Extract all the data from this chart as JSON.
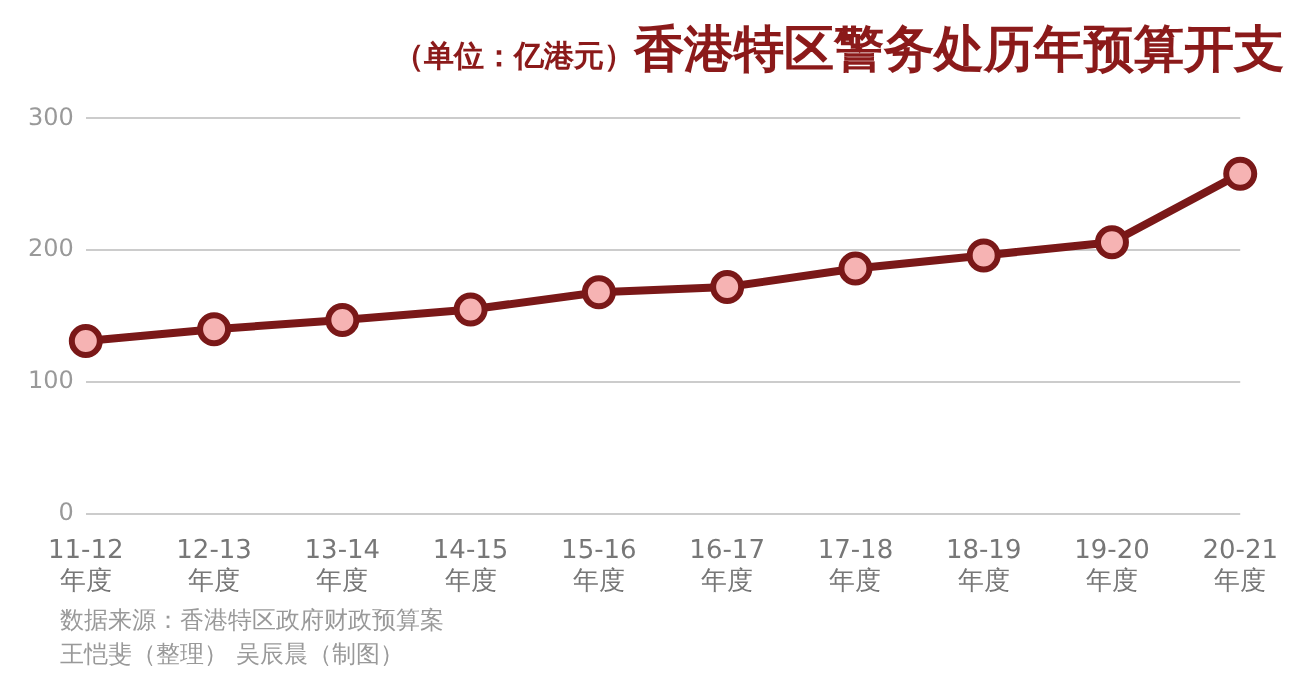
{
  "chart_data": {
    "type": "line",
    "subtitle": "（单位：亿港元）",
    "title": "香港特区警务处历年预算开支",
    "categories": [
      "11-12\n年度",
      "12-13\n年度",
      "13-14\n年度",
      "14-15\n年度",
      "15-16\n年度",
      "16-17\n年度",
      "17-18\n年度",
      "18-19\n年度",
      "19-20\n年度",
      "20-21\n年度"
    ],
    "series": [
      {
        "color": "#7a1818",
        "values": [
          131,
          140,
          147,
          155,
          168,
          172,
          186,
          196,
          206,
          258
        ]
      }
    ],
    "ylim": [
      0,
      300
    ],
    "yticks": [
      0,
      100,
      200,
      300
    ],
    "grid": "y",
    "legend": false,
    "marker": "circle",
    "line_style": "solid",
    "annotations": [
      "数据来源：香港特区政府财政预算案",
      "王恺斐（整理） 吴辰晨（制图）"
    ]
  }
}
